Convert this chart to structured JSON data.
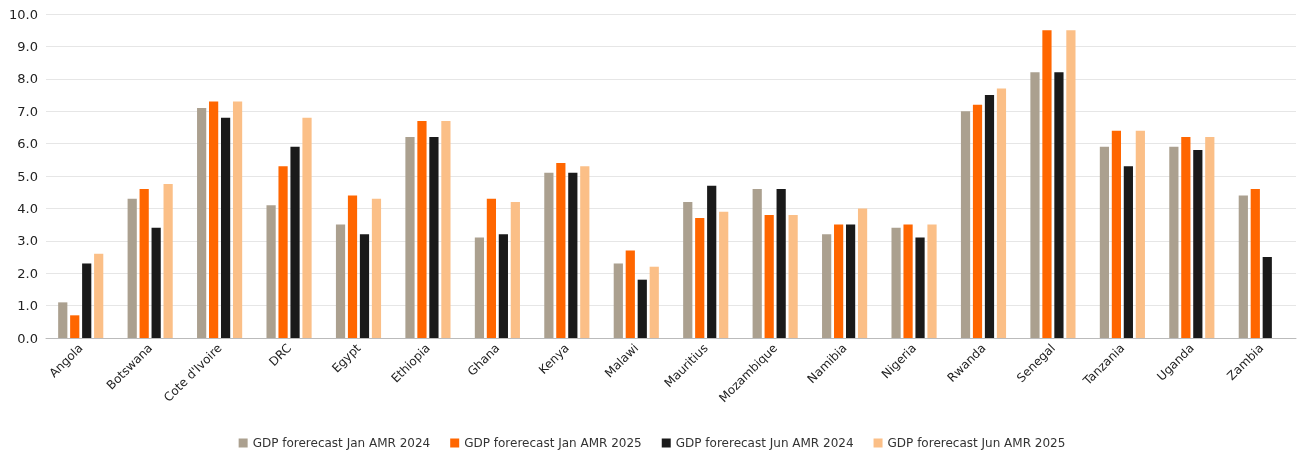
{
  "chart_data": {
    "type": "bar",
    "categories": [
      "Angola",
      "Botswana",
      "Cote d'Ivoire",
      "DRC",
      "Egypt",
      "Ethiopia",
      "Ghana",
      "Kenya",
      "Malawi",
      "Mauritius",
      "Mozambique",
      "Namibia",
      "Nigeria",
      "Rwanda",
      "Senegal",
      "Tanzania",
      "Uganda",
      "Zambia"
    ],
    "series": [
      {
        "name": "GDP forerecast Jan AMR 2024",
        "color": "#aba08f",
        "values": [
          1.1,
          4.3,
          7.1,
          4.1,
          3.5,
          6.2,
          3.1,
          5.1,
          2.3,
          4.2,
          4.6,
          3.2,
          3.4,
          7.0,
          8.2,
          5.9,
          5.9,
          4.4
        ]
      },
      {
        "name": "GDP forerecast Jan AMR 2025",
        "color": "#ff6600",
        "values": [
          0.7,
          4.6,
          7.3,
          5.3,
          4.4,
          6.7,
          4.3,
          5.4,
          2.7,
          3.7,
          3.8,
          3.5,
          3.5,
          7.2,
          9.5,
          6.4,
          6.2,
          4.6
        ]
      },
      {
        "name": "GDP forerecast Jun AMR 2024",
        "color": "#1a1a1a",
        "values": [
          2.3,
          3.4,
          6.8,
          5.9,
          3.2,
          6.2,
          3.2,
          5.1,
          1.8,
          4.7,
          4.6,
          3.5,
          3.1,
          7.5,
          8.2,
          5.3,
          5.8,
          2.5
        ]
      },
      {
        "name": "GDP forerecast Jun AMR 2025",
        "color": "#fbbf87",
        "values": [
          2.6,
          4.75,
          7.3,
          6.8,
          4.3,
          6.7,
          4.2,
          5.3,
          2.2,
          3.9,
          3.8,
          4.0,
          3.5,
          7.7,
          9.5,
          6.4,
          6.2,
          null
        ]
      }
    ],
    "ylim": [
      0,
      10
    ],
    "yticks": [
      {
        "value": 0,
        "label": "0.0"
      },
      {
        "value": 1,
        "label": "1.0"
      },
      {
        "value": 2,
        "label": "2.0"
      },
      {
        "value": 3,
        "label": "3.0"
      },
      {
        "value": 4,
        "label": "4.0"
      },
      {
        "value": 5,
        "label": "5.0"
      },
      {
        "value": 6,
        "label": "6.0"
      },
      {
        "value": 7,
        "label": "7.0"
      },
      {
        "value": 8,
        "label": "8.0"
      },
      {
        "value": 9,
        "label": "9.0"
      },
      {
        "value": 10,
        "label": "10.0"
      }
    ],
    "grid": "y",
    "legend": "bottom"
  }
}
